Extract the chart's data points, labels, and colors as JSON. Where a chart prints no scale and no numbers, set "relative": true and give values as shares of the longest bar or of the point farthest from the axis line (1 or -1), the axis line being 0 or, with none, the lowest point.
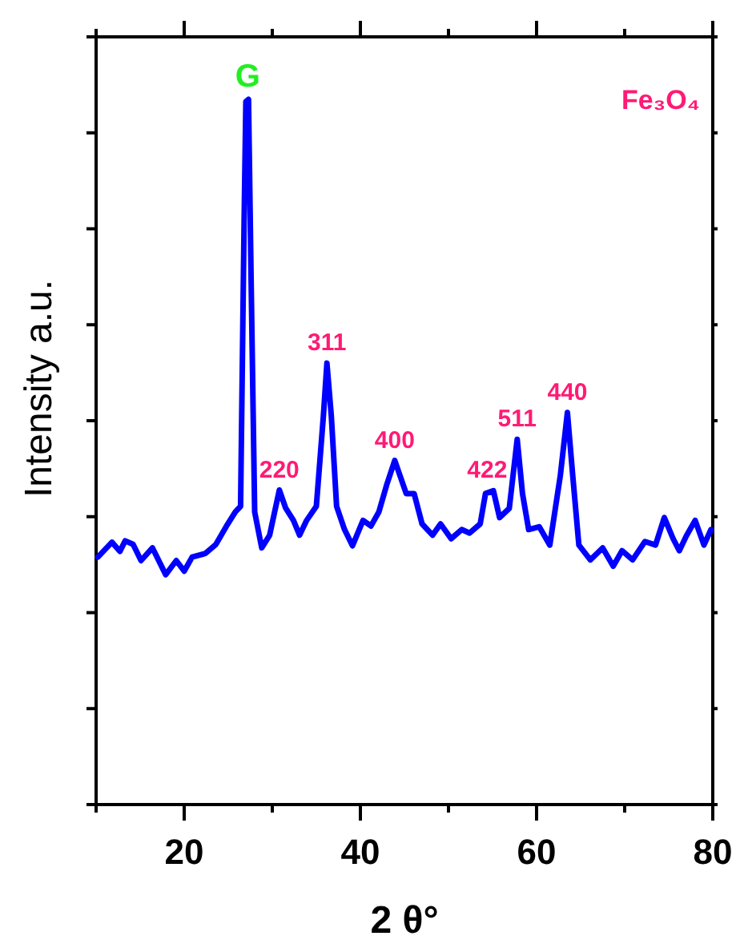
{
  "chart_data": {
    "type": "line",
    "relative": true,
    "xlabel": "2 θ°",
    "ylabel": "Intensity  a.u.",
    "xlim": [
      10,
      80
    ],
    "xticks": [
      {
        "value": 10,
        "label": null
      },
      20,
      {
        "value": 30,
        "label": null
      },
      40,
      {
        "value": 50,
        "label": null
      },
      60,
      {
        "value": 70,
        "label": null
      },
      80
    ],
    "series": [
      {
        "color": "#0000ff",
        "x": [
          10.2,
          11.8,
          12.7,
          13.3,
          14.2,
          15.1,
          16.4,
          17.9,
          19.1,
          20,
          20.9,
          22.4,
          23.6,
          24.8,
          25.8,
          26.4,
          26.8,
          27.0,
          27.3,
          27.6,
          28.0,
          28.8,
          29.7,
          30.8,
          31.5,
          32.4,
          33.1,
          33.9,
          35.0,
          35.8,
          36.2,
          36.7,
          37.3,
          38.2,
          39.1,
          40.3,
          41.2,
          42.1,
          43.0,
          43.9,
          45.2,
          46.1,
          47.0,
          48.2,
          49.1,
          50.3,
          51.5,
          52.4,
          53.6,
          54.2,
          55.1,
          55.8,
          56.9,
          57.8,
          58.4,
          59.1,
          60.3,
          61.5,
          62.7,
          63.5,
          64.1,
          64.8,
          66.1,
          67.5,
          68.7,
          69.7,
          70.9,
          72.3,
          73.5,
          74.5,
          75.5,
          76.2,
          77.0,
          78.0,
          79.0,
          79.8
        ],
        "values": [
          0.351,
          0.372,
          0.359,
          0.374,
          0.369,
          0.346,
          0.364,
          0.326,
          0.346,
          0.331,
          0.351,
          0.356,
          0.369,
          0.395,
          0.415,
          0.423,
          0.826,
          0.997,
          1.0,
          0.741,
          0.415,
          0.364,
          0.382,
          0.446,
          0.421,
          0.403,
          0.382,
          0.403,
          0.423,
          0.551,
          0.626,
          0.551,
          0.423,
          0.39,
          0.367,
          0.403,
          0.395,
          0.415,
          0.454,
          0.488,
          0.441,
          0.441,
          0.398,
          0.382,
          0.398,
          0.377,
          0.39,
          0.385,
          0.398,
          0.441,
          0.445,
          0.407,
          0.42,
          0.518,
          0.441,
          0.39,
          0.394,
          0.368,
          0.467,
          0.556,
          0.467,
          0.368,
          0.347,
          0.364,
          0.338,
          0.36,
          0.347,
          0.373,
          0.368,
          0.407,
          0.377,
          0.36,
          0.381,
          0.403,
          0.368,
          0.39
        ]
      }
    ],
    "annotations": [
      "Fe₃O₄",
      {
        "text": "G",
        "x": 27.2,
        "y": 1.0
      },
      {
        "text": "220",
        "x": 30.8,
        "y": 0.446
      },
      {
        "text": "311",
        "x": 36.2,
        "y": 0.626
      },
      {
        "text": "400",
        "x": 43.9,
        "y": 0.488
      },
      {
        "text": "422",
        "x": 54.4,
        "y": 0.445
      },
      {
        "text": "511",
        "x": 57.8,
        "y": 0.518
      },
      {
        "text": "440",
        "x": 63.5,
        "y": 0.556
      }
    ]
  }
}
